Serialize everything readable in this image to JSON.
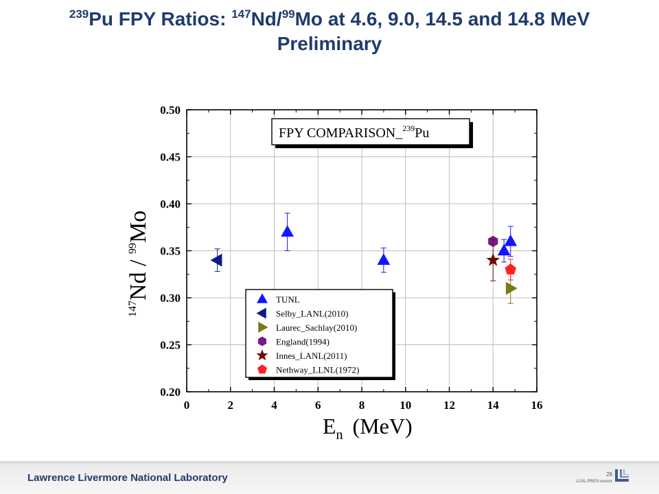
{
  "slide": {
    "title_parts": {
      "pu_mass": "239",
      "pu": "Pu FPY Ratios: ",
      "nd_mass": "147",
      "nd": "Nd/",
      "mo_mass": "99",
      "rest": "Mo at 4.6, 9.0, 14.5 and 14.8 MeV",
      "line2": "Preliminary"
    },
    "footer": {
      "lab_name": "Lawrence Livermore National Laboratory",
      "page_number": "28",
      "doc_code": "LLNL-PRES-xxxxxx"
    }
  },
  "chart_data": {
    "type": "scatter",
    "title_box": {
      "text": "FPY COMPARISON_",
      "superscript": "239",
      "element": "Pu"
    },
    "x_axis": {
      "label": "E",
      "label_sub": "n",
      "label_unit": "(MeV)",
      "range": [
        0,
        16
      ],
      "ticks": [
        "0",
        "2",
        "4",
        "6",
        "8",
        "10",
        "12",
        "14",
        "16"
      ]
    },
    "y_axis": {
      "label_parts": {
        "m1": "147",
        "e1": "Nd / ",
        "m2": "99",
        "e2": "Mo"
      },
      "range": [
        0.2,
        0.5
      ],
      "ticks": [
        "0.20",
        "0.25",
        "0.30",
        "0.35",
        "0.40",
        "0.45",
        "0.50"
      ]
    },
    "grid": true,
    "legend_position": "bottom-center",
    "series": [
      {
        "name": "TUNL",
        "marker": "triangle-up",
        "color": "#1414ff",
        "points": [
          {
            "x": 4.6,
            "y": 0.37,
            "err": 0.02
          },
          {
            "x": 9.0,
            "y": 0.34,
            "err": 0.013
          },
          {
            "x": 14.5,
            "y": 0.35,
            "err": 0.012
          },
          {
            "x": 14.8,
            "y": 0.36,
            "err": 0.016
          }
        ]
      },
      {
        "name": "Selby_LANL(2010)",
        "marker": "triangle-left",
        "color": "#0a1a8c",
        "points": [
          {
            "x": 1.4,
            "y": 0.34,
            "err": 0.012
          }
        ]
      },
      {
        "name": "Laurec_Sachlay(2010)",
        "marker": "triangle-right",
        "color": "#7a7a14",
        "points": [
          {
            "x": 14.8,
            "y": 0.31,
            "err": 0.016
          }
        ]
      },
      {
        "name": "England(1994)",
        "marker": "hexagon",
        "color": "#7a1a8c",
        "points": [
          {
            "x": 14.0,
            "y": 0.36,
            "err": 0
          }
        ]
      },
      {
        "name": "Innes_LANL(2011)",
        "marker": "star",
        "color": "#6e0c0c",
        "points": [
          {
            "x": 14.0,
            "y": 0.34,
            "err": 0.022
          }
        ]
      },
      {
        "name": "Nethway_LLNL(1972)",
        "marker": "pentagon",
        "color": "#ff2020",
        "points": [
          {
            "x": 14.8,
            "y": 0.33,
            "err": 0.011
          }
        ]
      }
    ]
  }
}
